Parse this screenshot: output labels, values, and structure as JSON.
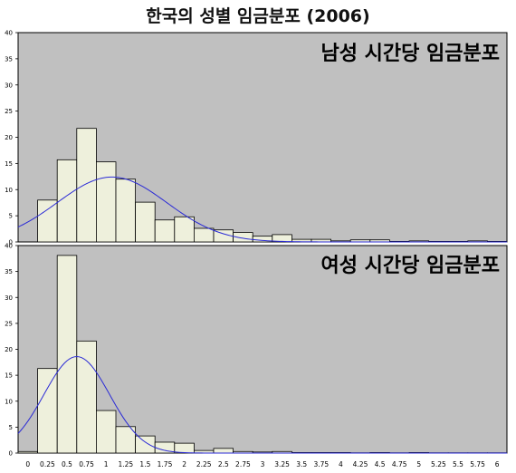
{
  "title": "한국의 성별 임금분포 (2006)",
  "colors": {
    "plot_bg": "#c0c0c0",
    "bar_fill": "#eef0dc",
    "bar_stroke": "#000000",
    "curve": "#2a2ad6",
    "frame": "#000000"
  },
  "chart_data": [
    {
      "type": "bar",
      "title": "남성 시간당 임금분포",
      "x_tick_labels": [],
      "bin_width": 0.25,
      "ylim": [
        0,
        40
      ],
      "y_ticks": [
        0,
        5,
        10,
        15,
        20,
        25,
        30,
        35,
        40
      ],
      "bins": [
        {
          "start": 0,
          "value": 0
        },
        {
          "start": 0.25,
          "value": 8
        },
        {
          "start": 0.5,
          "value": 15.7
        },
        {
          "start": 0.75,
          "value": 21.7
        },
        {
          "start": 1,
          "value": 15.3
        },
        {
          "start": 1.25,
          "value": 12
        },
        {
          "start": 1.5,
          "value": 7.6
        },
        {
          "start": 1.75,
          "value": 4.2
        },
        {
          "start": 2,
          "value": 4.8
        },
        {
          "start": 2.25,
          "value": 2.6
        },
        {
          "start": 2.5,
          "value": 2.3
        },
        {
          "start": 2.75,
          "value": 1.8
        },
        {
          "start": 3,
          "value": 1.1
        },
        {
          "start": 3.25,
          "value": 1.4
        },
        {
          "start": 3.5,
          "value": 0.5
        },
        {
          "start": 3.75,
          "value": 0.5
        },
        {
          "start": 4,
          "value": 0.2
        },
        {
          "start": 4.25,
          "value": 0.4
        },
        {
          "start": 4.5,
          "value": 0.4
        },
        {
          "start": 4.75,
          "value": 0.1
        },
        {
          "start": 5,
          "value": 0.2
        },
        {
          "start": 5.25,
          "value": 0.1
        },
        {
          "start": 5.5,
          "value": 0.1
        },
        {
          "start": 5.75,
          "value": 0.2
        },
        {
          "start": 6,
          "value": 0.1
        }
      ],
      "normal_curve": {
        "mean": 1.2,
        "sd": 0.7,
        "peak": 12.4
      },
      "grid": false
    },
    {
      "type": "bar",
      "title": "여성 시간당 임금분포",
      "x_tick_labels": [
        "0",
        "0.25",
        "0.5",
        "0.75",
        "1",
        "1.25",
        "1.5",
        "1.75",
        "2",
        "2.25",
        "2.5",
        "2.75",
        "3",
        "3.25",
        "3.5",
        "3.75",
        "4",
        "4.25",
        "4.5",
        "4.75",
        "5",
        "5.25",
        "5.5",
        "5.75",
        "6"
      ],
      "bin_width": 0.25,
      "ylim": [
        0,
        40
      ],
      "y_ticks": [
        0,
        5,
        10,
        15,
        20,
        25,
        30,
        35,
        40
      ],
      "bins": [
        {
          "start": 0,
          "value": 0.3
        },
        {
          "start": 0.25,
          "value": 16.3
        },
        {
          "start": 0.5,
          "value": 38.1
        },
        {
          "start": 0.75,
          "value": 21.6
        },
        {
          "start": 1,
          "value": 8.2
        },
        {
          "start": 1.25,
          "value": 5.1
        },
        {
          "start": 1.5,
          "value": 3.3
        },
        {
          "start": 1.75,
          "value": 2.1
        },
        {
          "start": 2,
          "value": 1.9
        },
        {
          "start": 2.25,
          "value": 0.5
        },
        {
          "start": 2.5,
          "value": 0.9
        },
        {
          "start": 2.75,
          "value": 0.3
        },
        {
          "start": 3,
          "value": 0.2
        },
        {
          "start": 3.25,
          "value": 0.3
        },
        {
          "start": 3.5,
          "value": 0.1
        },
        {
          "start": 3.75,
          "value": 0.1
        },
        {
          "start": 4,
          "value": 0.1
        },
        {
          "start": 4.25,
          "value": 0.05
        },
        {
          "start": 4.5,
          "value": 0.1
        },
        {
          "start": 4.75,
          "value": 0.05
        },
        {
          "start": 5,
          "value": 0.1
        },
        {
          "start": 5.25,
          "value": 0.05
        },
        {
          "start": 5.5,
          "value": 0.05
        },
        {
          "start": 5.75,
          "value": 0.05
        },
        {
          "start": 6,
          "value": 0.05
        }
      ],
      "normal_curve": {
        "mean": 0.75,
        "sd": 0.42,
        "peak": 18.6
      },
      "grid": false
    }
  ]
}
